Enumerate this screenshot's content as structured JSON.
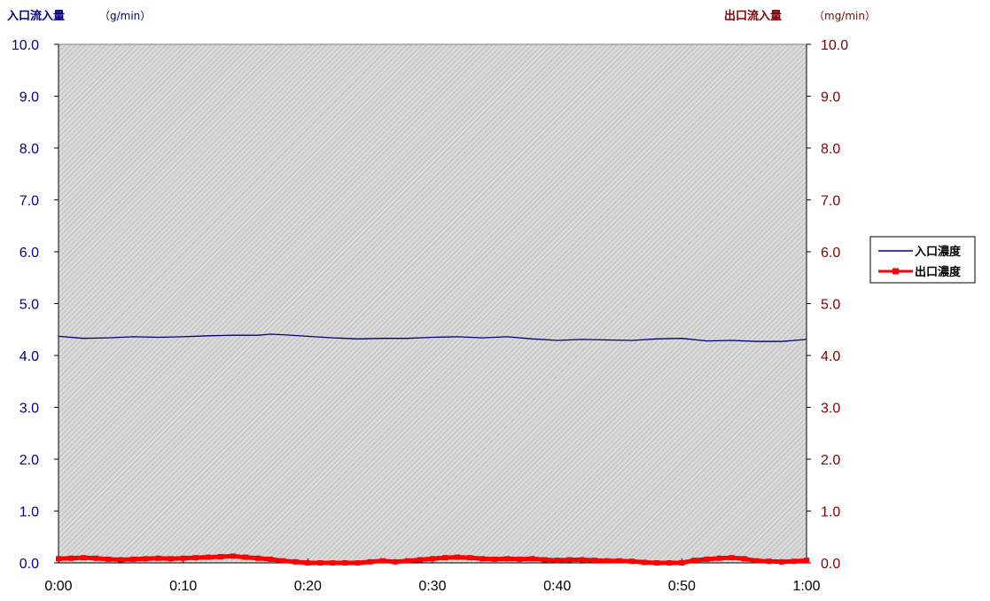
{
  "chart_data": {
    "type": "line",
    "title": "",
    "y_left": {
      "label": "入口流入量",
      "unit": "（g/min）",
      "range": [
        0,
        10
      ],
      "ticks": [
        "0.0",
        "1.0",
        "2.0",
        "3.0",
        "4.0",
        "5.0",
        "6.0",
        "7.0",
        "8.0",
        "9.0",
        "10.0"
      ],
      "color": "#000080"
    },
    "y_right": {
      "label": "出口流入量",
      "unit": "（mg/min）",
      "range": [
        0,
        10
      ],
      "ticks": [
        "0.0",
        "1.0",
        "2.0",
        "3.0",
        "4.0",
        "5.0",
        "6.0",
        "7.0",
        "8.0",
        "9.0",
        "10.0"
      ],
      "color": "#800000"
    },
    "x_axis": {
      "range_minutes": [
        0,
        60
      ],
      "ticks": [
        "0:00",
        "0:10",
        "0:20",
        "0:30",
        "0:40",
        "0:50",
        "1:00"
      ]
    },
    "grid": false,
    "plot_background": "#c8c8c8",
    "legend_position": "right",
    "series": [
      {
        "name": "入口濃度",
        "axis": "left",
        "color": "#000080",
        "marker": "none",
        "x_minutes": [
          0,
          2,
          4,
          6,
          8,
          10,
          12,
          14,
          16,
          17,
          18,
          20,
          22,
          24,
          26,
          28,
          30,
          32,
          34,
          36,
          38,
          40,
          42,
          44,
          46,
          48,
          50,
          52,
          54,
          56,
          58,
          60
        ],
        "values": [
          4.37,
          4.33,
          4.34,
          4.36,
          4.35,
          4.36,
          4.38,
          4.39,
          4.39,
          4.41,
          4.4,
          4.37,
          4.34,
          4.32,
          4.33,
          4.33,
          4.35,
          4.36,
          4.34,
          4.36,
          4.32,
          4.29,
          4.31,
          4.3,
          4.29,
          4.32,
          4.33,
          4.28,
          4.29,
          4.27,
          4.27,
          4.31
        ]
      },
      {
        "name": "出口濃度",
        "axis": "right",
        "color": "#ff0000",
        "marker": "square",
        "x_minutes": [
          0,
          1,
          2,
          3,
          4,
          5,
          6,
          7,
          8,
          9,
          10,
          11,
          12,
          13,
          14,
          15,
          16,
          17,
          18,
          19,
          20,
          21,
          22,
          23,
          24,
          25,
          26,
          27,
          28,
          29,
          30,
          31,
          32,
          33,
          34,
          35,
          36,
          37,
          38,
          39,
          40,
          41,
          42,
          43,
          44,
          45,
          46,
          47,
          48,
          49,
          50,
          51,
          52,
          53,
          54,
          55,
          56,
          57,
          58,
          59,
          60
        ],
        "values": [
          0.08,
          0.09,
          0.1,
          0.09,
          0.07,
          0.06,
          0.07,
          0.08,
          0.09,
          0.08,
          0.09,
          0.1,
          0.11,
          0.12,
          0.13,
          0.11,
          0.09,
          0.07,
          0.04,
          0.02,
          0.0,
          0.0,
          0.0,
          0.0,
          0.0,
          0.02,
          0.04,
          0.02,
          0.04,
          0.06,
          0.08,
          0.1,
          0.11,
          0.1,
          0.08,
          0.07,
          0.08,
          0.07,
          0.08,
          0.06,
          0.05,
          0.06,
          0.06,
          0.05,
          0.04,
          0.04,
          0.03,
          0.01,
          0.0,
          0.0,
          0.0,
          0.05,
          0.07,
          0.09,
          0.1,
          0.08,
          0.04,
          0.03,
          0.02,
          0.03,
          0.05
        ]
      }
    ]
  }
}
